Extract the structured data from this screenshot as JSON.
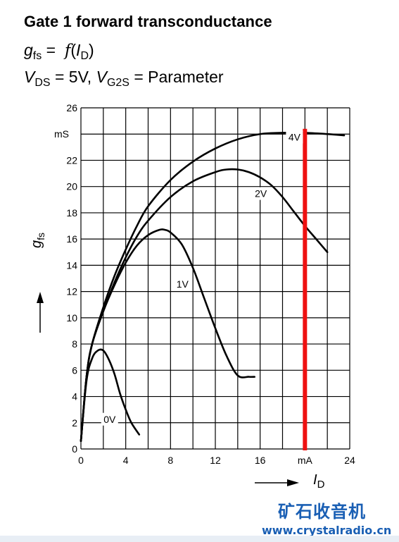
{
  "header": {
    "title": "Gate 1 forward transconductance",
    "line1": {
      "g": "g",
      "g_sub": "fs",
      "eq": " =  ",
      "f": "f",
      "open": "(",
      "i": "I",
      "i_sub": "D",
      "close": ")"
    },
    "line2": {
      "v1": "V",
      "v1_sub": "DS",
      "mid": " = 5V, ",
      "v2": "V",
      "v2_sub": "G2S",
      "end": " = Parameter"
    }
  },
  "chart_data": {
    "type": "line",
    "title": "Gate 1 forward transconductance",
    "xlabel": "I",
    "xlabel_sub": "D",
    "xunit": "mA",
    "ylabel": "g",
    "ylabel_sub": "fs",
    "yunit": "mS",
    "xlim": [
      0,
      24
    ],
    "ylim": [
      0,
      26
    ],
    "x_ticks": [
      "0",
      "4",
      "8",
      "12",
      "16",
      "mA",
      "24"
    ],
    "y_ticks": [
      "0",
      "2",
      "4",
      "6",
      "8",
      "10",
      "12",
      "14",
      "16",
      "18",
      "20",
      "22",
      "mS",
      "26"
    ],
    "grid": true,
    "series": [
      {
        "name": "0V",
        "x": [
          0,
          0.5,
          1,
          1.5,
          2,
          2.5,
          3,
          3.5,
          4,
          4.5,
          5.2
        ],
        "y": [
          0.6,
          5.2,
          6.9,
          7.5,
          7.5,
          6.8,
          5.7,
          4.2,
          3.0,
          2.0,
          1.1
        ]
      },
      {
        "name": "1V",
        "x": [
          0,
          0.5,
          1,
          2,
          3,
          4,
          5,
          6,
          7,
          7.5,
          8,
          9,
          10,
          11,
          12,
          13,
          14,
          15,
          15.5
        ],
        "y": [
          0.6,
          5.5,
          8.0,
          10.5,
          12.5,
          14.2,
          15.5,
          16.3,
          16.7,
          16.7,
          16.5,
          15.6,
          13.8,
          11.5,
          9.2,
          7.1,
          5.6,
          5.5,
          5.5
        ]
      },
      {
        "name": "2V",
        "x": [
          0,
          0.5,
          1,
          2,
          3,
          4,
          5,
          6,
          8,
          10,
          12,
          13,
          14,
          15,
          16,
          17,
          18,
          19,
          20,
          21,
          22
        ],
        "y": [
          0.6,
          5.5,
          8.0,
          10.5,
          12.7,
          14.6,
          16.2,
          17.4,
          19.2,
          20.4,
          21.1,
          21.3,
          21.3,
          21.1,
          20.7,
          20.1,
          19.2,
          18.1,
          17.0,
          16.0,
          15.0
        ]
      },
      {
        "name": "4V",
        "x": [
          0,
          0.5,
          1,
          2,
          3,
          4,
          5,
          6,
          8,
          10,
          12,
          14,
          16,
          18,
          20,
          22,
          23.5
        ],
        "y": [
          0.6,
          5.5,
          8.0,
          10.8,
          13.2,
          15.2,
          17.0,
          18.5,
          20.5,
          21.9,
          22.9,
          23.6,
          24.0,
          24.1,
          24.1,
          24.0,
          23.9
        ]
      }
    ],
    "marker": {
      "x": 20,
      "color": "#ee1111"
    },
    "series_label_positions": {
      "0V": [
        2.5,
        2
      ],
      "1V": [
        9,
        12.3
      ],
      "2V": [
        16,
        19.2
      ],
      "4V": [
        19,
        23.5
      ]
    }
  },
  "watermark": {
    "brand": "矿石收音机",
    "url": "www.crystalradio.cn",
    "color": "#1a5fb4"
  }
}
